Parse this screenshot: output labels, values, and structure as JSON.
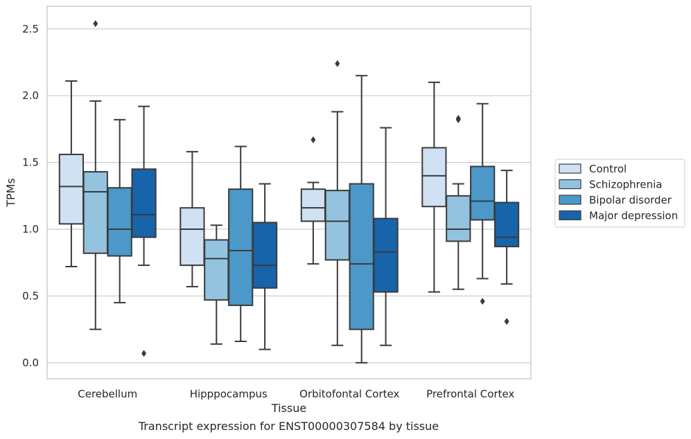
{
  "caption": "Transcript expression for ENST00000307584 by tissue",
  "chart_data": {
    "type": "box",
    "xlabel": "Tissue",
    "ylabel": "TPMs",
    "ylim": [
      -0.12,
      2.67
    ],
    "yticks": [
      0.0,
      0.5,
      1.0,
      1.5,
      2.0,
      2.5
    ],
    "grid": true,
    "legend_position": "outside-right",
    "categories": [
      "Cerebellum",
      "Hipppocampus",
      "Orbitofontal Cortex",
      "Prefrontal Cortex"
    ],
    "colors": {
      "edge": "#3a3a3a",
      "grid": "#cccccc",
      "text": "#262626",
      "frame": "#cccccc"
    },
    "series": [
      {
        "name": "Control",
        "color": "#cfe1f2",
        "boxes": [
          {
            "whisker_low": 0.72,
            "q1": 1.04,
            "median": 1.32,
            "q3": 1.56,
            "whisker_high": 2.11,
            "outliers": []
          },
          {
            "whisker_low": 0.57,
            "q1": 0.73,
            "median": 1.0,
            "q3": 1.16,
            "whisker_high": 1.58,
            "outliers": []
          },
          {
            "whisker_low": 0.74,
            "q1": 1.06,
            "median": 1.16,
            "q3": 1.3,
            "whisker_high": 1.35,
            "outliers": [
              1.67
            ]
          },
          {
            "whisker_low": 0.53,
            "q1": 1.17,
            "median": 1.4,
            "q3": 1.61,
            "whisker_high": 2.1,
            "outliers": []
          }
        ]
      },
      {
        "name": "Schizophrenia",
        "color": "#93c3df",
        "boxes": [
          {
            "whisker_low": 0.25,
            "q1": 0.82,
            "median": 1.28,
            "q3": 1.43,
            "whisker_high": 1.96,
            "outliers": [
              2.54
            ]
          },
          {
            "whisker_low": 0.14,
            "q1": 0.47,
            "median": 0.78,
            "q3": 0.92,
            "whisker_high": 1.03,
            "outliers": []
          },
          {
            "whisker_low": 0.13,
            "q1": 0.77,
            "median": 1.06,
            "q3": 1.29,
            "whisker_high": 1.88,
            "outliers": [
              2.24
            ]
          },
          {
            "whisker_low": 0.55,
            "q1": 0.91,
            "median": 1.0,
            "q3": 1.25,
            "whisker_high": 1.34,
            "outliers": [
              1.83,
              1.82
            ]
          }
        ]
      },
      {
        "name": "Bipolar disorder",
        "color": "#4b98c9",
        "boxes": [
          {
            "whisker_low": 0.45,
            "q1": 0.8,
            "median": 1.0,
            "q3": 1.31,
            "whisker_high": 1.82,
            "outliers": []
          },
          {
            "whisker_low": 0.16,
            "q1": 0.43,
            "median": 0.84,
            "q3": 1.3,
            "whisker_high": 1.62,
            "outliers": []
          },
          {
            "whisker_low": 0.0,
            "q1": 0.25,
            "median": 0.74,
            "q3": 1.34,
            "whisker_high": 2.15,
            "outliers": []
          },
          {
            "whisker_low": 0.63,
            "q1": 1.07,
            "median": 1.21,
            "q3": 1.47,
            "whisker_high": 1.94,
            "outliers": [
              0.46
            ]
          }
        ]
      },
      {
        "name": "Major depression",
        "color": "#1764ab",
        "boxes": [
          {
            "whisker_low": 0.73,
            "q1": 0.94,
            "median": 1.11,
            "q3": 1.45,
            "whisker_high": 1.92,
            "outliers": [
              0.07
            ]
          },
          {
            "whisker_low": 0.1,
            "q1": 0.56,
            "median": 0.73,
            "q3": 1.05,
            "whisker_high": 1.34,
            "outliers": []
          },
          {
            "whisker_low": 0.13,
            "q1": 0.53,
            "median": 0.83,
            "q3": 1.08,
            "whisker_high": 1.76,
            "outliers": []
          },
          {
            "whisker_low": 0.59,
            "q1": 0.87,
            "median": 0.94,
            "q3": 1.2,
            "whisker_high": 1.44,
            "outliers": [
              0.31
            ]
          }
        ]
      }
    ]
  }
}
